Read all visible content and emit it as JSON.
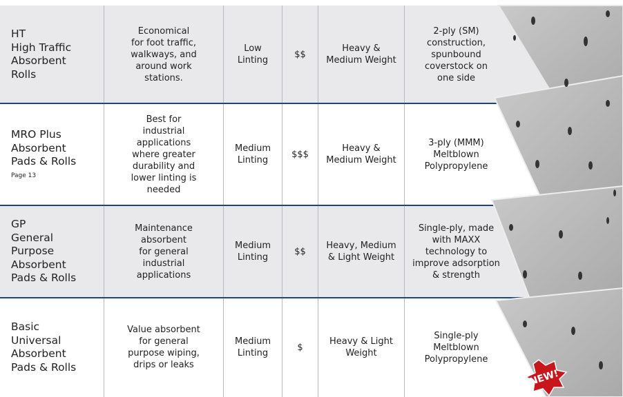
{
  "table": {
    "rows": [
      {
        "name": [
          "HT",
          "High Traffic",
          "Absorbent",
          "Rolls"
        ],
        "description": [
          "Economical",
          "for foot traffic,",
          "walkways, and",
          "around work",
          "stations."
        ],
        "linting": [
          "Low",
          "Linting"
        ],
        "cost": "$$",
        "weight": [
          "Heavy &",
          "Medium Weight"
        ],
        "construction": [
          "2-ply (SM)",
          "construction,",
          "spunbound",
          "coverstock on",
          "one side"
        ]
      },
      {
        "name": [
          "MRO Plus",
          "Absorbent",
          "Pads & Rolls"
        ],
        "note": "Page 13",
        "description": [
          "Best for",
          "industrial",
          "applications",
          "where greater",
          "durability and",
          "lower linting is",
          "needed"
        ],
        "linting": [
          "Medium",
          "Linting"
        ],
        "cost": "$$$",
        "weight": [
          "Heavy &",
          "Medium Weight"
        ],
        "construction": [
          "3-ply (MMM)",
          "Meltblown",
          "Polypropylene"
        ]
      },
      {
        "name": [
          "GP",
          "General",
          "Purpose",
          "Absorbent",
          "Pads & Rolls"
        ],
        "description": [
          "Maintenance",
          "absorbent",
          "for general",
          "industrial",
          "applications"
        ],
        "linting": [
          "Medium",
          "Linting"
        ],
        "cost": "$$",
        "weight": [
          "Heavy, Medium",
          "& Light Weight"
        ],
        "construction": [
          "Single-ply, made",
          "with MAXX",
          "technology to",
          "improve adsorption",
          "& strength"
        ]
      },
      {
        "name": [
          "Basic",
          "Universal",
          "Absorbent",
          "Pads & Rolls"
        ],
        "description": [
          "Value absorbent",
          "for general",
          "purpose wiping,",
          "drips or leaks"
        ],
        "linting": [
          "Medium",
          "Linting"
        ],
        "cost": "$",
        "weight": [
          "Heavy & Light",
          "Weight"
        ],
        "construction": [
          "Single-ply",
          "Meltblown",
          "Polypropylene"
        ]
      }
    ]
  },
  "badge": "NEW!"
}
